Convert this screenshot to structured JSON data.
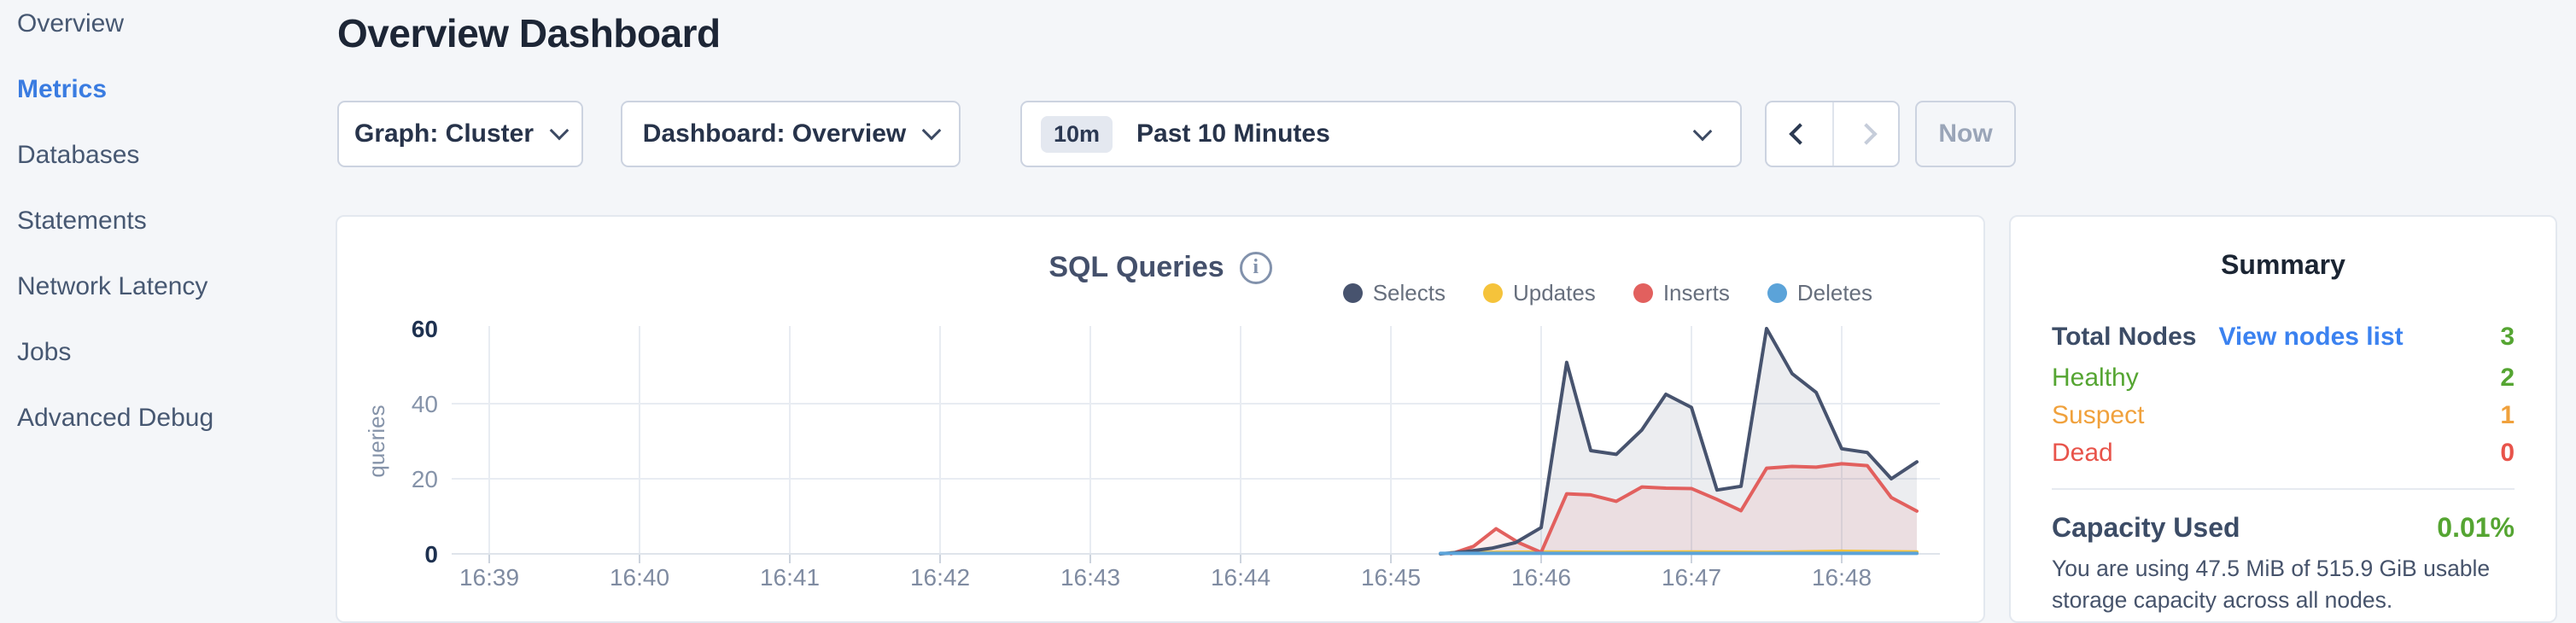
{
  "sidebar": {
    "items": [
      "Overview",
      "Metrics",
      "Databases",
      "Statements",
      "Network Latency",
      "Jobs",
      "Advanced Debug"
    ],
    "active_item": "Metrics"
  },
  "header": {
    "title": "Overview Dashboard"
  },
  "toolbar": {
    "graph_dropdown_label": "Graph: Cluster",
    "dashboard_dropdown_label": "Dashboard: Overview",
    "time_window_badge": "10m",
    "time_window_label": "Past 10 Minutes",
    "prev_icon": "chevron-left",
    "next_icon": "chevron-right",
    "now_label": "Now"
  },
  "chart_card": {
    "title": "SQL Queries",
    "info_icon": "i"
  },
  "chart_data": {
    "type": "area",
    "title": "SQL Queries",
    "ylabel": "queries",
    "ylim": [
      0,
      60
    ],
    "yticks": [
      0,
      20,
      40,
      60
    ],
    "ytick_emphasis": [
      0,
      60
    ],
    "grid": true,
    "legend_position": "top-right",
    "x_ticks": [
      {
        "t": 0,
        "label": "16:39"
      },
      {
        "t": 1,
        "label": "16:40"
      },
      {
        "t": 2,
        "label": "16:41"
      },
      {
        "t": 3,
        "label": "16:42"
      },
      {
        "t": 4,
        "label": "16:43"
      },
      {
        "t": 5,
        "label": "16:44"
      },
      {
        "t": 6,
        "label": "16:45"
      },
      {
        "t": 7,
        "label": "16:46"
      },
      {
        "t": 8,
        "label": "16:47"
      },
      {
        "t": 9,
        "label": "16:48"
      }
    ],
    "series": [
      {
        "name": "Selects",
        "color": "#47536e",
        "fill_opacity": 0.1,
        "points": [
          [
            6.33,
            0
          ],
          [
            6.5,
            0.6
          ],
          [
            6.67,
            1.5
          ],
          [
            6.83,
            3
          ],
          [
            7,
            7
          ],
          [
            7.17,
            51
          ],
          [
            7.33,
            27.5
          ],
          [
            7.5,
            26.5
          ],
          [
            7.67,
            33
          ],
          [
            7.83,
            42.5
          ],
          [
            8,
            39
          ],
          [
            8.17,
            17
          ],
          [
            8.33,
            18
          ],
          [
            8.5,
            60
          ],
          [
            8.67,
            48
          ],
          [
            8.83,
            43
          ],
          [
            9,
            28
          ],
          [
            9.17,
            27
          ],
          [
            9.33,
            20
          ],
          [
            9.5,
            24.5
          ]
        ]
      },
      {
        "name": "Updates",
        "color": "#f5c33b",
        "fill_opacity": 0,
        "points": [
          [
            6.4,
            0.3
          ],
          [
            7,
            0.5
          ],
          [
            7.5,
            0.4
          ],
          [
            8,
            0.5
          ],
          [
            8.5,
            0.4
          ],
          [
            9,
            0.7
          ],
          [
            9.5,
            0.5
          ]
        ]
      },
      {
        "name": "Inserts",
        "color": "#e2605e",
        "fill_opacity": 0.1,
        "points": [
          [
            6.4,
            0
          ],
          [
            6.55,
            2
          ],
          [
            6.7,
            6.7
          ],
          [
            6.85,
            3
          ],
          [
            7,
            0.4
          ],
          [
            7.17,
            16
          ],
          [
            7.33,
            15.7
          ],
          [
            7.5,
            14
          ],
          [
            7.67,
            17.8
          ],
          [
            7.83,
            17.5
          ],
          [
            8,
            17.4
          ],
          [
            8.17,
            14.5
          ],
          [
            8.33,
            11.5
          ],
          [
            8.5,
            22.8
          ],
          [
            8.67,
            23.3
          ],
          [
            8.83,
            23.1
          ],
          [
            9,
            24
          ],
          [
            9.17,
            23.5
          ],
          [
            9.33,
            15
          ],
          [
            9.5,
            11.4
          ]
        ]
      },
      {
        "name": "Deletes",
        "color": "#5ba3d9",
        "fill_opacity": 0,
        "points": [
          [
            6.33,
            0.15
          ],
          [
            9.5,
            0.15
          ]
        ]
      }
    ]
  },
  "summary": {
    "title": "Summary",
    "total_label": "Total Nodes",
    "total_link": "View nodes list",
    "total_value": "3",
    "status_rows": [
      {
        "label": "Healthy",
        "value": "2",
        "color": "green"
      },
      {
        "label": "Suspect",
        "value": "1",
        "color": "orange"
      },
      {
        "label": "Dead",
        "value": "0",
        "color": "red"
      }
    ],
    "capacity_label": "Capacity Used",
    "capacity_value": "0.01%",
    "capacity_desc": "You are using 47.5 MiB of 515.9 GiB usable storage capacity across all nodes."
  },
  "colors": {
    "accent_blue": "#3a7ce1",
    "link_blue": "#3b82f0",
    "healthy_green": "#55a532",
    "suspect_orange": "#f0a13c",
    "dead_red": "#e8534a",
    "page_bg": "#f4f6f9"
  }
}
